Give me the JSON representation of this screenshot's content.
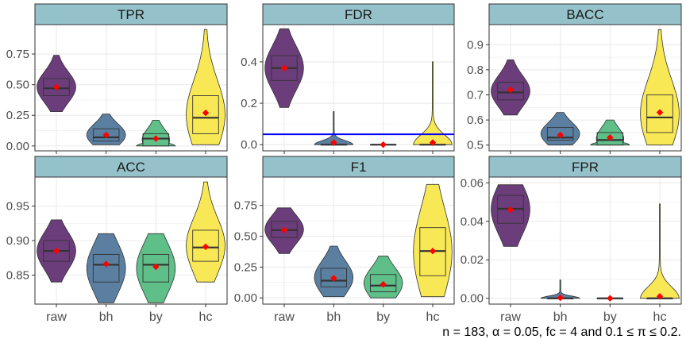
{
  "caption": "n = 183, α = 0.05, fc = 4 and 0.1 ≤ π ≤ 0.2.",
  "colors": {
    "strip_bg": "#95c2ca",
    "panel_border": "#333333",
    "grid": "#ebebeb",
    "median_line": "#333333",
    "mean_marker": "#ff0000",
    "reference_line": "#0000ff",
    "fills": {
      "raw": "#6b3d7a",
      "bh": "#5b7fa0",
      "by": "#5fbf89",
      "hc": "#f9e855"
    }
  },
  "chart_data": [
    {
      "type": "violin-box",
      "title": "TPR",
      "categories": [
        "raw",
        "bh",
        "by",
        "hc"
      ],
      "ylim": [
        -0.04,
        0.99
      ],
      "yticks": [
        0.0,
        0.25,
        0.5,
        0.75
      ],
      "ytick_labels": [
        "0.00",
        "0.25",
        "0.50",
        "0.75"
      ],
      "show_x_labels": false,
      "series": [
        {
          "name": "raw",
          "min": 0.28,
          "q1": 0.41,
          "median": 0.47,
          "q3": 0.55,
          "max": 0.74,
          "mean": 0.48
        },
        {
          "name": "bh",
          "min": 0.01,
          "q1": 0.04,
          "median": 0.07,
          "q3": 0.14,
          "max": 0.26,
          "mean": 0.09
        },
        {
          "name": "by",
          "min": 0.0,
          "q1": 0.0,
          "median": 0.06,
          "q3": 0.1,
          "max": 0.21,
          "mean": 0.06
        },
        {
          "name": "hc",
          "min": 0.01,
          "q1": 0.1,
          "median": 0.23,
          "q3": 0.41,
          "max": 0.95,
          "mean": 0.27
        }
      ]
    },
    {
      "type": "violin-box",
      "title": "FDR",
      "categories": [
        "raw",
        "bh",
        "by",
        "hc"
      ],
      "ylim": [
        -0.03,
        0.58
      ],
      "yticks": [
        0.0,
        0.2,
        0.4
      ],
      "ytick_labels": [
        "0.0",
        "0.2",
        "0.4"
      ],
      "show_x_labels": false,
      "hline": 0.05,
      "series": [
        {
          "name": "raw",
          "min": 0.18,
          "q1": 0.31,
          "median": 0.37,
          "q3": 0.43,
          "max": 0.56,
          "mean": 0.37
        },
        {
          "name": "bh",
          "min": 0.0,
          "q1": 0.0,
          "median": 0.0,
          "q3": 0.0,
          "max": 0.16,
          "mean": 0.01
        },
        {
          "name": "by",
          "min": 0.0,
          "q1": 0.0,
          "median": 0.0,
          "q3": 0.0,
          "max": 0.0,
          "mean": 0.0
        },
        {
          "name": "hc",
          "min": 0.0,
          "q1": 0.0,
          "median": 0.0,
          "q3": 0.0,
          "max": 0.4,
          "mean": 0.01
        }
      ]
    },
    {
      "type": "violin-box",
      "title": "BACC",
      "categories": [
        "raw",
        "bh",
        "by",
        "hc"
      ],
      "ylim": [
        0.477,
        0.98
      ],
      "yticks": [
        0.5,
        0.6,
        0.7,
        0.8,
        0.9
      ],
      "ytick_labels": [
        "0.5",
        "0.6",
        "0.7",
        "0.8",
        "0.9"
      ],
      "show_x_labels": false,
      "series": [
        {
          "name": "raw",
          "min": 0.62,
          "q1": 0.68,
          "median": 0.71,
          "q3": 0.75,
          "max": 0.84,
          "mean": 0.72
        },
        {
          "name": "bh",
          "min": 0.5,
          "q1": 0.52,
          "median": 0.53,
          "q3": 0.57,
          "max": 0.63,
          "mean": 0.54
        },
        {
          "name": "by",
          "min": 0.5,
          "q1": 0.5,
          "median": 0.52,
          "q3": 0.55,
          "max": 0.6,
          "mean": 0.53
        },
        {
          "name": "hc",
          "min": 0.5,
          "q1": 0.55,
          "median": 0.61,
          "q3": 0.7,
          "max": 0.96,
          "mean": 0.63
        }
      ]
    },
    {
      "type": "violin-box",
      "title": "ACC",
      "categories": [
        "raw",
        "bh",
        "by",
        "hc"
      ],
      "ylim": [
        0.808,
        0.992
      ],
      "yticks": [
        0.85,
        0.9,
        0.95
      ],
      "ytick_labels": [
        "0.85",
        "0.90",
        "0.95"
      ],
      "show_x_labels": true,
      "series": [
        {
          "name": "raw",
          "min": 0.84,
          "q1": 0.87,
          "median": 0.885,
          "q3": 0.9,
          "max": 0.93,
          "mean": 0.885
        },
        {
          "name": "bh",
          "min": 0.81,
          "q1": 0.84,
          "median": 0.865,
          "q3": 0.88,
          "max": 0.91,
          "mean": 0.866
        },
        {
          "name": "by",
          "min": 0.81,
          "q1": 0.84,
          "median": 0.865,
          "q3": 0.88,
          "max": 0.91,
          "mean": 0.862
        },
        {
          "name": "hc",
          "min": 0.84,
          "q1": 0.87,
          "median": 0.89,
          "q3": 0.915,
          "max": 0.985,
          "mean": 0.891
        }
      ]
    },
    {
      "type": "violin-box",
      "title": "F1",
      "categories": [
        "raw",
        "bh",
        "by",
        "hc"
      ],
      "ylim": [
        -0.05,
        0.98
      ],
      "yticks": [
        0.0,
        0.25,
        0.5,
        0.75
      ],
      "ytick_labels": [
        "0.00",
        "0.25",
        "0.50",
        "0.75"
      ],
      "show_x_labels": true,
      "series": [
        {
          "name": "raw",
          "min": 0.36,
          "q1": 0.49,
          "median": 0.55,
          "q3": 0.62,
          "max": 0.73,
          "mean": 0.55
        },
        {
          "name": "bh",
          "min": 0.01,
          "q1": 0.09,
          "median": 0.14,
          "q3": 0.24,
          "max": 0.42,
          "mean": 0.16
        },
        {
          "name": "by",
          "min": 0.0,
          "q1": 0.05,
          "median": 0.1,
          "q3": 0.19,
          "max": 0.34,
          "mean": 0.11
        },
        {
          "name": "hc",
          "min": 0.01,
          "q1": 0.18,
          "median": 0.38,
          "q3": 0.57,
          "max": 0.92,
          "mean": 0.38
        }
      ]
    },
    {
      "type": "violin-box",
      "title": "FPR",
      "categories": [
        "raw",
        "bh",
        "by",
        "hc"
      ],
      "ylim": [
        -0.003,
        0.063
      ],
      "yticks": [
        0.0,
        0.02,
        0.04,
        0.06
      ],
      "ytick_labels": [
        "0.00",
        "0.02",
        "0.04",
        "0.06"
      ],
      "show_x_labels": true,
      "series": [
        {
          "name": "raw",
          "min": 0.027,
          "q1": 0.039,
          "median": 0.0465,
          "q3": 0.0535,
          "max": 0.059,
          "mean": 0.046
        },
        {
          "name": "bh",
          "min": 0.0,
          "q1": 0.0,
          "median": 0.0,
          "q3": 0.0,
          "max": 0.0095,
          "mean": 0.0003
        },
        {
          "name": "by",
          "min": 0.0,
          "q1": 0.0,
          "median": 0.0,
          "q3": 0.0,
          "max": 0.0,
          "mean": 0.0
        },
        {
          "name": "hc",
          "min": 0.0,
          "q1": 0.0,
          "median": 0.0,
          "q3": 0.0,
          "max": 0.049,
          "mean": 0.001
        }
      ]
    }
  ]
}
